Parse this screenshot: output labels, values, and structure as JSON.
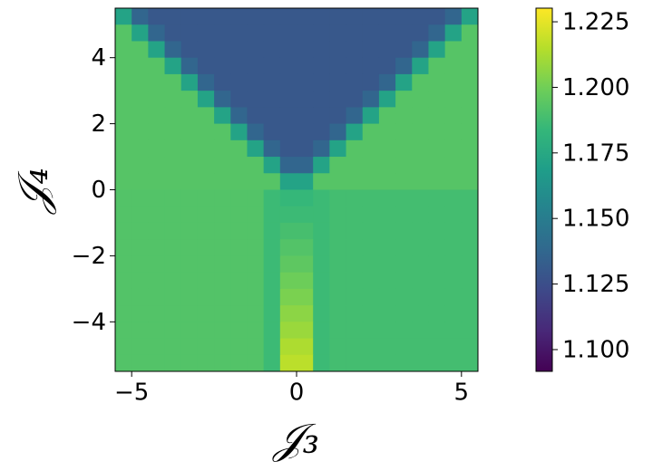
{
  "chart_data": {
    "type": "heatmap",
    "xlabel": "𝒥₃",
    "ylabel": "𝒥₄",
    "colormap": "viridis",
    "xlim": [
      -5.5,
      5.5
    ],
    "ylim": [
      -5.5,
      5.5
    ],
    "xticks": [
      {
        "value": -5,
        "label": "−5"
      },
      0,
      5
    ],
    "yticks": [
      {
        "value": -4,
        "label": "−4"
      },
      {
        "value": -2,
        "label": "−2"
      },
      0,
      2,
      4
    ],
    "clim": [
      1.0917,
      1.2302
    ],
    "cticks": [
      {
        "value": 1.1,
        "label": "1.100"
      },
      {
        "value": 1.125,
        "label": "1.125"
      },
      {
        "value": 1.15,
        "label": "1.150"
      },
      {
        "value": 1.175,
        "label": "1.175"
      },
      {
        "value": 1.2,
        "label": "1.200"
      },
      {
        "value": 1.225,
        "label": "1.225"
      }
    ],
    "z": [
      [
        1.172,
        1.137,
        1.13,
        1.13,
        1.13,
        1.13,
        1.13,
        1.13,
        1.13,
        1.13,
        1.13,
        1.13,
        1.13,
        1.13,
        1.13,
        1.13,
        1.13,
        1.13,
        1.13,
        1.13,
        1.137,
        1.172
      ],
      [
        1.193,
        1.172,
        1.137,
        1.13,
        1.13,
        1.13,
        1.13,
        1.13,
        1.13,
        1.13,
        1.13,
        1.13,
        1.13,
        1.13,
        1.13,
        1.13,
        1.13,
        1.13,
        1.13,
        1.137,
        1.172,
        1.193
      ],
      [
        1.193,
        1.193,
        1.172,
        1.137,
        1.13,
        1.13,
        1.13,
        1.13,
        1.13,
        1.13,
        1.13,
        1.13,
        1.13,
        1.13,
        1.13,
        1.13,
        1.13,
        1.13,
        1.137,
        1.172,
        1.193,
        1.193
      ],
      [
        1.193,
        1.193,
        1.193,
        1.172,
        1.137,
        1.13,
        1.13,
        1.13,
        1.13,
        1.13,
        1.13,
        1.13,
        1.13,
        1.13,
        1.13,
        1.13,
        1.13,
        1.137,
        1.172,
        1.193,
        1.193,
        1.193
      ],
      [
        1.193,
        1.193,
        1.193,
        1.193,
        1.172,
        1.137,
        1.13,
        1.13,
        1.13,
        1.13,
        1.13,
        1.13,
        1.13,
        1.13,
        1.13,
        1.13,
        1.137,
        1.172,
        1.193,
        1.193,
        1.193,
        1.193
      ],
      [
        1.193,
        1.193,
        1.193,
        1.193,
        1.193,
        1.172,
        1.137,
        1.13,
        1.13,
        1.13,
        1.13,
        1.13,
        1.13,
        1.13,
        1.13,
        1.137,
        1.172,
        1.193,
        1.193,
        1.193,
        1.193,
        1.193
      ],
      [
        1.193,
        1.193,
        1.193,
        1.193,
        1.193,
        1.193,
        1.172,
        1.137,
        1.13,
        1.13,
        1.13,
        1.13,
        1.13,
        1.13,
        1.137,
        1.172,
        1.193,
        1.193,
        1.193,
        1.193,
        1.193,
        1.193
      ],
      [
        1.193,
        1.193,
        1.193,
        1.193,
        1.193,
        1.193,
        1.193,
        1.172,
        1.137,
        1.13,
        1.13,
        1.13,
        1.13,
        1.137,
        1.172,
        1.193,
        1.193,
        1.193,
        1.193,
        1.193,
        1.193,
        1.193
      ],
      [
        1.193,
        1.193,
        1.193,
        1.193,
        1.193,
        1.193,
        1.193,
        1.193,
        1.172,
        1.137,
        1.13,
        1.13,
        1.137,
        1.172,
        1.193,
        1.193,
        1.193,
        1.193,
        1.193,
        1.193,
        1.193,
        1.193
      ],
      [
        1.193,
        1.193,
        1.193,
        1.193,
        1.193,
        1.193,
        1.193,
        1.193,
        1.193,
        1.172,
        1.137,
        1.137,
        1.172,
        1.193,
        1.193,
        1.193,
        1.193,
        1.193,
        1.193,
        1.193,
        1.193,
        1.193
      ],
      [
        1.193,
        1.193,
        1.193,
        1.193,
        1.193,
        1.193,
        1.193,
        1.193,
        1.193,
        1.193,
        1.172,
        1.172,
        1.193,
        1.193,
        1.193,
        1.193,
        1.193,
        1.193,
        1.193,
        1.193,
        1.193,
        1.193
      ],
      [
        1.192,
        1.192,
        1.192,
        1.192,
        1.192,
        1.192,
        1.192,
        1.192,
        1.192,
        1.186,
        1.184,
        1.184,
        1.186,
        1.188,
        1.188,
        1.188,
        1.188,
        1.188,
        1.188,
        1.188,
        1.188,
        1.188
      ],
      [
        1.192,
        1.192,
        1.192,
        1.192,
        1.192,
        1.192,
        1.192,
        1.192,
        1.192,
        1.186,
        1.186,
        1.186,
        1.186,
        1.188,
        1.188,
        1.188,
        1.188,
        1.188,
        1.188,
        1.188,
        1.188,
        1.188
      ],
      [
        1.192,
        1.192,
        1.192,
        1.192,
        1.192,
        1.192,
        1.192,
        1.192,
        1.192,
        1.186,
        1.189,
        1.189,
        1.186,
        1.188,
        1.188,
        1.188,
        1.188,
        1.188,
        1.188,
        1.188,
        1.188,
        1.188
      ],
      [
        1.192,
        1.192,
        1.192,
        1.192,
        1.192,
        1.192,
        1.192,
        1.192,
        1.192,
        1.186,
        1.192,
        1.192,
        1.186,
        1.188,
        1.188,
        1.188,
        1.188,
        1.188,
        1.188,
        1.188,
        1.188,
        1.188
      ],
      [
        1.192,
        1.192,
        1.192,
        1.192,
        1.192,
        1.192,
        1.192,
        1.192,
        1.192,
        1.186,
        1.195,
        1.195,
        1.186,
        1.188,
        1.188,
        1.188,
        1.188,
        1.188,
        1.188,
        1.188,
        1.188,
        1.188
      ],
      [
        1.192,
        1.192,
        1.192,
        1.192,
        1.192,
        1.192,
        1.192,
        1.192,
        1.192,
        1.186,
        1.199,
        1.199,
        1.186,
        1.188,
        1.188,
        1.188,
        1.188,
        1.188,
        1.188,
        1.188,
        1.188,
        1.188
      ],
      [
        1.192,
        1.192,
        1.192,
        1.192,
        1.192,
        1.192,
        1.192,
        1.192,
        1.192,
        1.186,
        1.202,
        1.202,
        1.186,
        1.188,
        1.188,
        1.188,
        1.188,
        1.188,
        1.188,
        1.188,
        1.188,
        1.188
      ],
      [
        1.192,
        1.192,
        1.192,
        1.192,
        1.192,
        1.192,
        1.192,
        1.192,
        1.192,
        1.186,
        1.206,
        1.206,
        1.186,
        1.188,
        1.188,
        1.188,
        1.188,
        1.188,
        1.188,
        1.188,
        1.188,
        1.188
      ],
      [
        1.192,
        1.192,
        1.192,
        1.192,
        1.192,
        1.192,
        1.192,
        1.192,
        1.192,
        1.186,
        1.209,
        1.209,
        1.186,
        1.188,
        1.188,
        1.188,
        1.188,
        1.188,
        1.188,
        1.188,
        1.188,
        1.188
      ],
      [
        1.192,
        1.192,
        1.192,
        1.192,
        1.192,
        1.192,
        1.192,
        1.192,
        1.192,
        1.186,
        1.213,
        1.213,
        1.186,
        1.188,
        1.188,
        1.188,
        1.188,
        1.188,
        1.188,
        1.188,
        1.188,
        1.188
      ],
      [
        1.192,
        1.192,
        1.192,
        1.192,
        1.192,
        1.192,
        1.192,
        1.192,
        1.192,
        1.186,
        1.216,
        1.216,
        1.186,
        1.188,
        1.188,
        1.188,
        1.188,
        1.188,
        1.188,
        1.188,
        1.188,
        1.188
      ]
    ]
  }
}
